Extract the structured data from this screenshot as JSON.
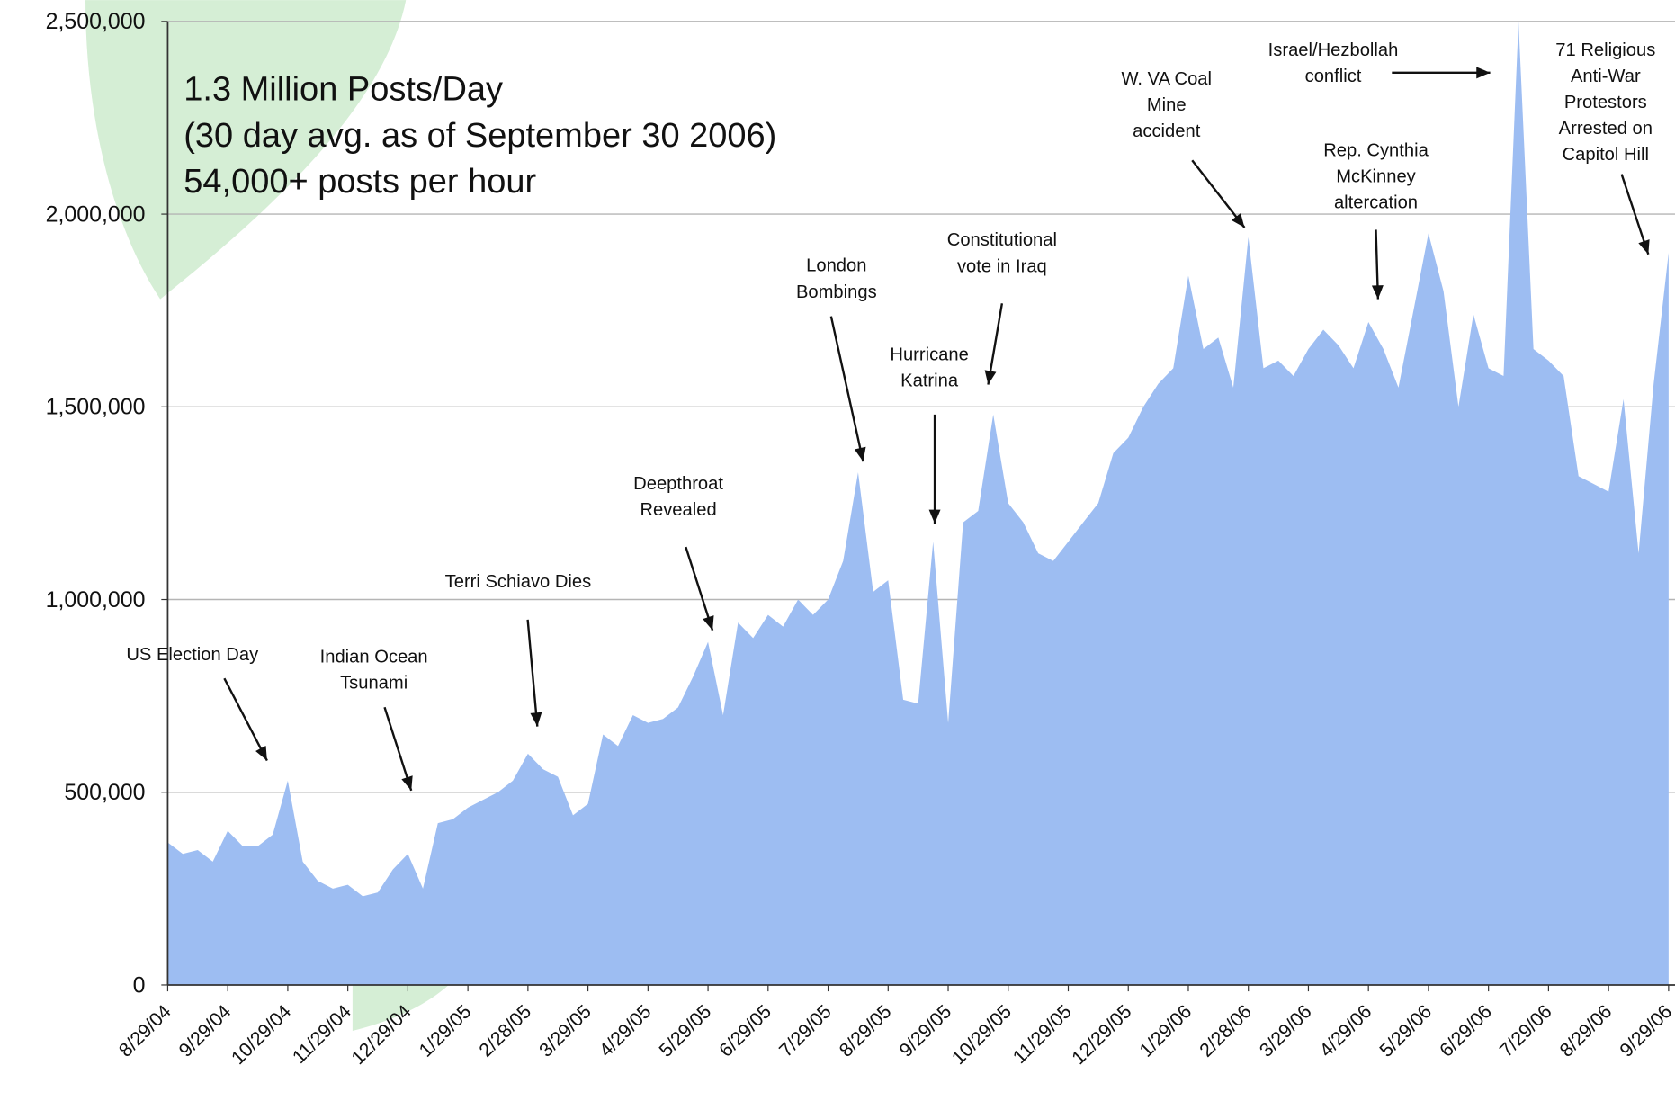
{
  "chart_data": {
    "type": "area",
    "title": "1.3 Million Posts/Day",
    "subtitle": [
      "(30 day avg. as of September 30 2006)",
      "54,000+ posts per hour"
    ],
    "categories": [
      "8/29/04",
      null,
      null,
      null,
      "9/29/04",
      null,
      null,
      null,
      "10/29/04",
      null,
      null,
      null,
      "11/29/04",
      null,
      null,
      null,
      "12/29/04",
      null,
      null,
      null,
      "1/29/05",
      null,
      null,
      null,
      "2/28/05",
      null,
      null,
      null,
      "3/29/05",
      null,
      null,
      null,
      "4/29/05",
      null,
      null,
      null,
      "5/29/05",
      null,
      null,
      null,
      "6/29/05",
      null,
      null,
      null,
      "7/29/05",
      null,
      null,
      null,
      "8/29/05",
      null,
      null,
      null,
      "9/29/05",
      null,
      null,
      null,
      "10/29/05",
      null,
      null,
      null,
      "11/29/05",
      null,
      null,
      null,
      "12/29/05",
      null,
      null,
      null,
      "1/29/06",
      null,
      null,
      null,
      "2/28/06",
      null,
      null,
      null,
      "3/29/06",
      null,
      null,
      null,
      "4/29/06",
      null,
      null,
      null,
      "5/29/06",
      null,
      null,
      null,
      "6/29/06",
      null,
      null,
      null,
      "7/29/06",
      null,
      null,
      null,
      "8/29/06",
      null,
      null,
      null,
      "9/29/06"
    ],
    "values": [
      370000,
      340000,
      350000,
      320000,
      400000,
      360000,
      360000,
      390000,
      530000,
      320000,
      270000,
      250000,
      260000,
      230000,
      240000,
      300000,
      340000,
      250000,
      420000,
      430000,
      460000,
      480000,
      500000,
      530000,
      600000,
      560000,
      540000,
      440000,
      470000,
      650000,
      620000,
      700000,
      680000,
      690000,
      720000,
      800000,
      890000,
      700000,
      940000,
      900000,
      960000,
      930000,
      1000000,
      960000,
      1000000,
      1100000,
      1330000,
      1020000,
      1050000,
      740000,
      730000,
      1150000,
      680000,
      1200000,
      1230000,
      1480000,
      1250000,
      1200000,
      1120000,
      1100000,
      1150000,
      1200000,
      1250000,
      1380000,
      1420000,
      1500000,
      1560000,
      1600000,
      1840000,
      1650000,
      1680000,
      1550000,
      1940000,
      1600000,
      1620000,
      1580000,
      1650000,
      1700000,
      1660000,
      1600000,
      1720000,
      1650000,
      1550000,
      1750000,
      1950000,
      1800000,
      1500000,
      1740000,
      1600000,
      1580000,
      2500000,
      1650000,
      1620000,
      1580000,
      1320000,
      1300000,
      1280000,
      1520000,
      1120000,
      1560000,
      1900000
    ],
    "color": "#9dbdf2",
    "ylim": [
      0,
      2500000
    ],
    "yticks": [
      0,
      {
        "value": 500000,
        "label": "500,000"
      },
      {
        "value": 1000000,
        "label": "1,000,000"
      },
      {
        "value": 1500000,
        "label": "1,500,000"
      },
      {
        "value": 2000000,
        "label": "2,000,000"
      },
      {
        "value": 2500000,
        "label": "2,500,000"
      }
    ],
    "grid": true,
    "annotations": [
      [
        "US Election Day"
      ],
      [
        "Indian Ocean",
        "Tsunami"
      ],
      [
        "Terri Schiavo Dies"
      ],
      [
        "Deepthroat",
        "Revealed"
      ],
      [
        "London",
        "Bombings"
      ],
      [
        "Hurricane",
        "Katrina"
      ],
      [
        "Constitutional",
        "vote in Iraq"
      ],
      [
        "W. VA Coal",
        "Mine",
        "accident"
      ],
      [
        "Israel/Hezbollah",
        "conflict"
      ],
      [
        "Rep. Cynthia",
        "McKinney",
        "altercation"
      ],
      [
        "71 Religious",
        "Anti-War",
        "Protestors",
        "Arrested on",
        "Capitol Hill"
      ]
    ]
  }
}
